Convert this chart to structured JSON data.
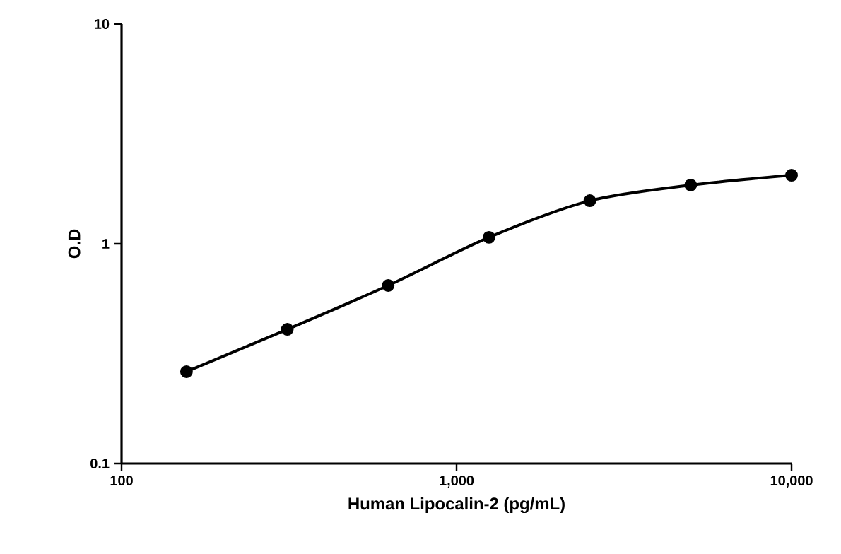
{
  "chart_data": {
    "type": "line",
    "xlabel": "Human Lipocalin-2 (pg/mL)",
    "ylabel": "O.D",
    "x": [
      156.25,
      312.5,
      625,
      1250,
      2500,
      5000,
      10000
    ],
    "values": [
      0.262,
      0.408,
      0.646,
      1.07,
      1.57,
      1.85,
      2.05
    ],
    "color": "#000000",
    "log": "xy",
    "marker": "circle",
    "line_style": "solid",
    "xlim": [
      100,
      10000
    ],
    "ylim": [
      0.1,
      10
    ],
    "xticks": [
      100,
      {
        "value": 1000,
        "label": "1,000"
      },
      {
        "value": 10000,
        "label": "10,000"
      }
    ],
    "yticks": [
      0.1,
      1,
      10
    ]
  }
}
